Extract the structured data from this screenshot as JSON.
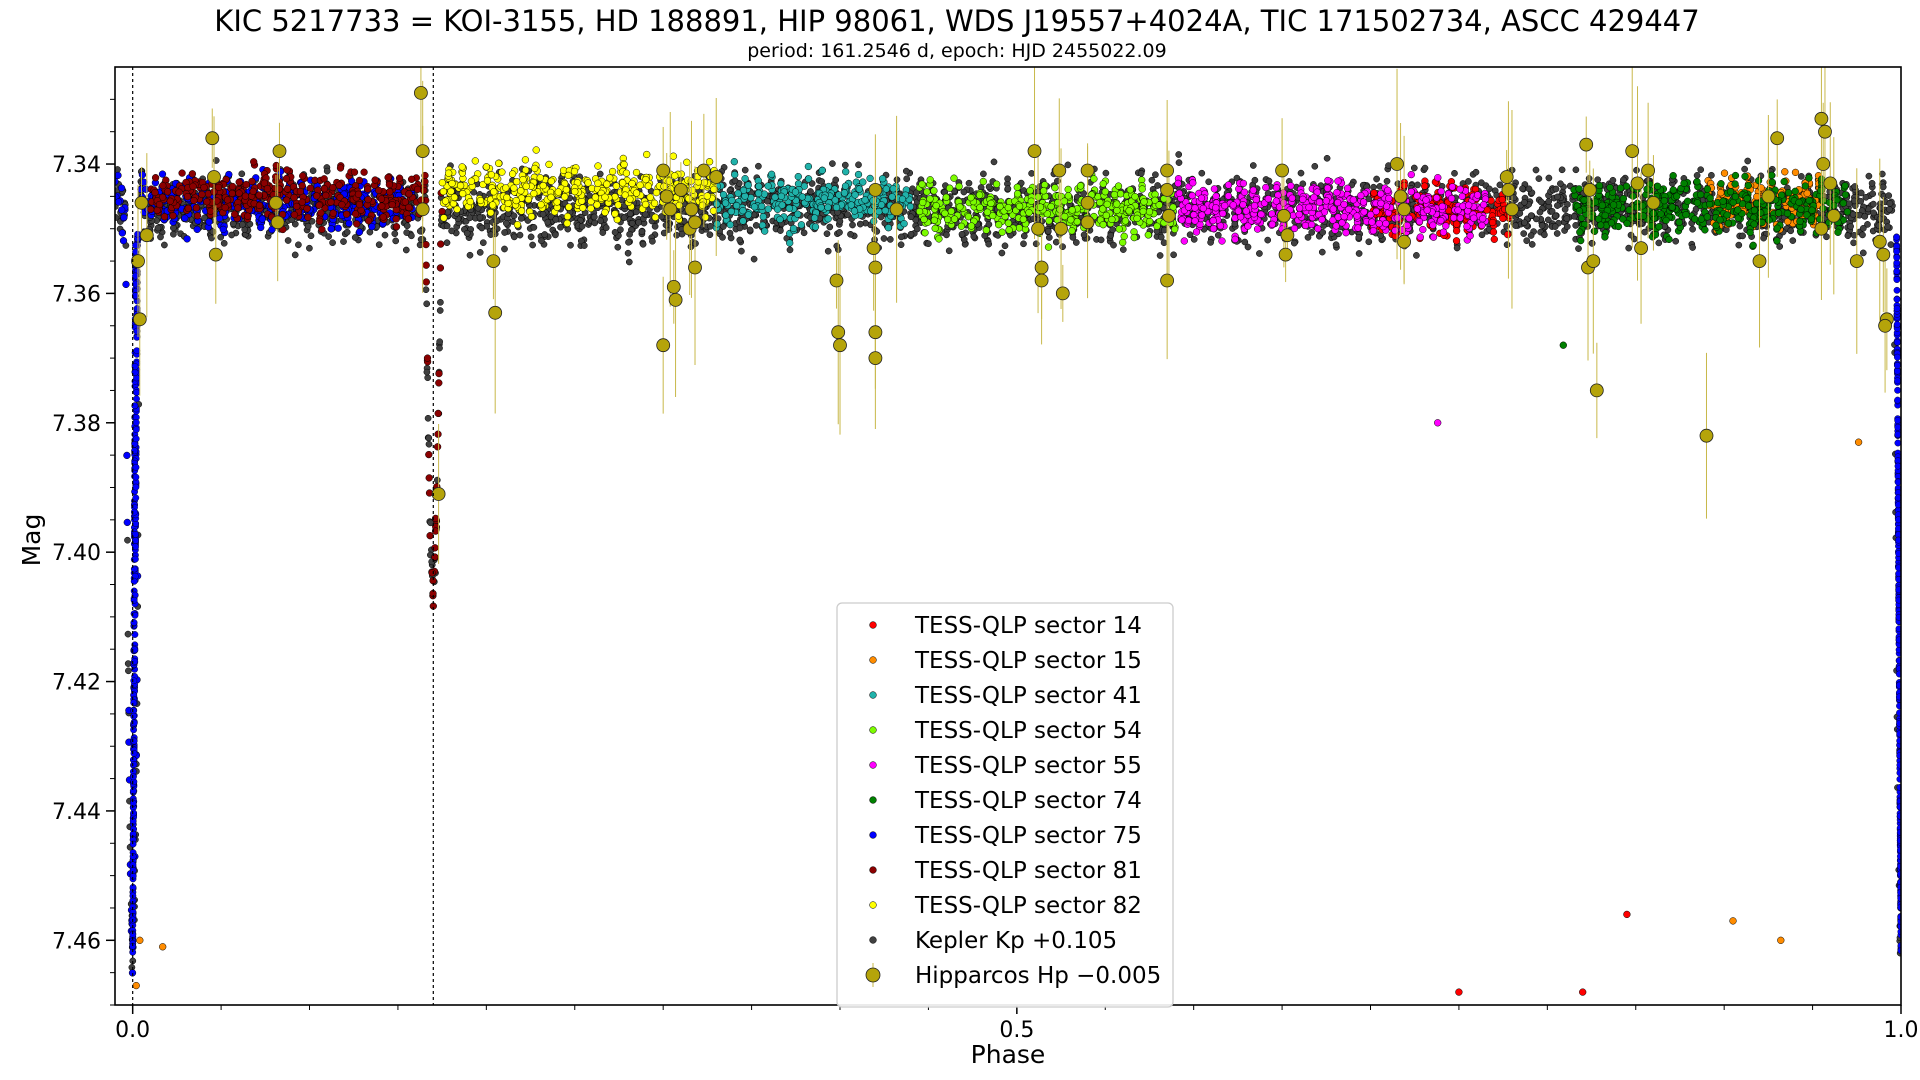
{
  "chart_data": {
    "type": "scatter",
    "title": "KIC 5217733 = KOI-3155, HD 188891, HIP 98061, WDS J19557+4024A, TIC 171502734, ASCC 429447",
    "subtitle": "period: 161.2546 d, epoch: HJD 2455022.09",
    "xlabel": "Phase",
    "ylabel": "Mag",
    "xlim": [
      -0.01,
      1.0
    ],
    "ylim": [
      7.47,
      7.325
    ],
    "y_inverted": true,
    "x_ticks": [
      0.0,
      0.5,
      1.0
    ],
    "x_tick_labels": [
      "0.0",
      "0.5",
      "1.0"
    ],
    "y_ticks": [
      7.34,
      7.36,
      7.38,
      7.4,
      7.42,
      7.44,
      7.46
    ],
    "y_tick_labels": [
      "7.34",
      "7.36",
      "7.38",
      "7.40",
      "7.42",
      "7.44",
      "7.46"
    ],
    "vertical_lines_x": [
      0.0,
      0.17
    ],
    "legend_position": "lower center",
    "eclipses": [
      {
        "name": "primary",
        "center": 0.0,
        "depth_mag": 7.462,
        "half_width": 0.004
      },
      {
        "name": "secondary",
        "center": 0.17,
        "depth_mag": 7.405,
        "half_width": 0.0045
      }
    ],
    "series": [
      {
        "name": "TESS-QLP sector 14",
        "color": "#ff0000",
        "phase_range": [
          0.7,
          0.78
        ],
        "baseline_mag": 7.347,
        "outliers": [
          [
            0.75,
            7.468
          ],
          [
            0.82,
            7.468
          ],
          [
            0.845,
            7.456
          ]
        ]
      },
      {
        "name": "TESS-QLP sector 15",
        "color": "#ff8c00",
        "phase_range": [
          0.89,
          0.955
        ],
        "baseline_mag": 7.346,
        "outliers": [
          [
            0.004,
            7.46
          ],
          [
            0.017,
            7.461
          ],
          [
            0.905,
            7.457
          ],
          [
            0.932,
            7.46
          ],
          [
            0.976,
            7.383
          ],
          [
            0.002,
            7.467
          ]
        ]
      },
      {
        "name": "TESS-QLP sector 41",
        "color": "#20b2aa",
        "phase_range": [
          0.33,
          0.44
        ],
        "baseline_mag": 7.346,
        "outliers": []
      },
      {
        "name": "TESS-QLP sector 54",
        "color": "#7cfc00",
        "phase_range": [
          0.445,
          0.59
        ],
        "baseline_mag": 7.347,
        "outliers": []
      },
      {
        "name": "TESS-QLP sector 55",
        "color": "#ff00ff",
        "phase_range": [
          0.59,
          0.765
        ],
        "baseline_mag": 7.347,
        "outliers": [
          [
            0.738,
            7.38
          ]
        ]
      },
      {
        "name": "TESS-QLP sector 74",
        "color": "#008000",
        "phase_range": [
          0.815,
          0.97
        ],
        "baseline_mag": 7.347,
        "outliers": [
          [
            0.809,
            7.368
          ]
        ]
      },
      {
        "name": "TESS-QLP sector 75",
        "color": "#0000ff",
        "phase_range": [
          -0.01,
          0.16
        ],
        "baseline_mag": 7.346,
        "outliers": []
      },
      {
        "name": "TESS-QLP sector 81",
        "color": "#8b0000",
        "phase_range": [
          0.01,
          0.175
        ],
        "baseline_mag": 7.345,
        "outliers": []
      },
      {
        "name": "TESS-QLP sector 82",
        "color": "#ffff00",
        "phase_range": [
          0.175,
          0.33
        ],
        "baseline_mag": 7.344,
        "outliers": []
      },
      {
        "name": "Kepler Kp +0.105",
        "color": "#404040",
        "phase_range": [
          -0.01,
          1.0
        ],
        "baseline_mag": 7.347,
        "outliers": []
      },
      {
        "name": "Hipparcos Hp −0.005",
        "color": "#b5a40a",
        "points": [
          [
            0.005,
            7.346
          ],
          [
            0.008,
            7.351
          ],
          [
            0.004,
            7.364
          ],
          [
            0.003,
            7.355
          ],
          [
            0.045,
            7.336
          ],
          [
            0.046,
            7.342
          ],
          [
            0.047,
            7.354
          ],
          [
            0.081,
            7.346
          ],
          [
            0.082,
            7.349
          ],
          [
            0.083,
            7.338
          ],
          [
            0.163,
            7.329
          ],
          [
            0.164,
            7.338
          ],
          [
            0.164,
            7.347
          ],
          [
            0.173,
            7.391
          ],
          [
            0.204,
            7.355
          ],
          [
            0.205,
            7.363
          ],
          [
            0.3,
            7.368
          ],
          [
            0.3,
            7.341
          ],
          [
            0.302,
            7.345
          ],
          [
            0.304,
            7.347
          ],
          [
            0.306,
            7.359
          ],
          [
            0.307,
            7.361
          ],
          [
            0.31,
            7.344
          ],
          [
            0.316,
            7.347
          ],
          [
            0.318,
            7.356
          ],
          [
            0.315,
            7.35
          ],
          [
            0.318,
            7.349
          ],
          [
            0.323,
            7.341
          ],
          [
            0.33,
            7.342
          ],
          [
            0.398,
            7.358
          ],
          [
            0.399,
            7.366
          ],
          [
            0.4,
            7.368
          ],
          [
            0.42,
            7.344
          ],
          [
            0.42,
            7.356
          ],
          [
            0.419,
            7.353
          ],
          [
            0.42,
            7.366
          ],
          [
            0.42,
            7.37
          ],
          [
            0.432,
            7.347
          ],
          [
            0.51,
            7.338
          ],
          [
            0.512,
            7.35
          ],
          [
            0.514,
            7.356
          ],
          [
            0.514,
            7.358
          ],
          [
            0.524,
            7.341
          ],
          [
            0.525,
            7.35
          ],
          [
            0.526,
            7.36
          ],
          [
            0.54,
            7.341
          ],
          [
            0.54,
            7.346
          ],
          [
            0.54,
            7.349
          ],
          [
            0.585,
            7.341
          ],
          [
            0.585,
            7.344
          ],
          [
            0.586,
            7.348
          ],
          [
            0.585,
            7.358
          ],
          [
            0.65,
            7.341
          ],
          [
            0.651,
            7.348
          ],
          [
            0.652,
            7.354
          ],
          [
            0.653,
            7.351
          ],
          [
            0.715,
            7.34
          ],
          [
            0.717,
            7.345
          ],
          [
            0.719,
            7.347
          ],
          [
            0.719,
            7.352
          ],
          [
            0.777,
            7.342
          ],
          [
            0.778,
            7.344
          ],
          [
            0.78,
            7.347
          ],
          [
            0.823,
            7.356
          ],
          [
            0.822,
            7.337
          ],
          [
            0.824,
            7.344
          ],
          [
            0.826,
            7.355
          ],
          [
            0.828,
            7.375
          ],
          [
            0.848,
            7.338
          ],
          [
            0.851,
            7.343
          ],
          [
            0.853,
            7.353
          ],
          [
            0.857,
            7.341
          ],
          [
            0.86,
            7.346
          ],
          [
            0.955,
            7.333
          ],
          [
            0.956,
            7.34
          ],
          [
            0.957,
            7.335
          ],
          [
            0.955,
            7.35
          ],
          [
            0.96,
            7.343
          ],
          [
            0.962,
            7.348
          ],
          [
            0.93,
            7.336
          ],
          [
            0.92,
            7.355
          ],
          [
            0.925,
            7.345
          ],
          [
            0.988,
            7.352
          ],
          [
            0.99,
            7.354
          ],
          [
            0.992,
            7.364
          ],
          [
            0.991,
            7.365
          ],
          [
            0.89,
            7.382
          ],
          [
            0.975,
            7.355
          ]
        ]
      }
    ]
  }
}
